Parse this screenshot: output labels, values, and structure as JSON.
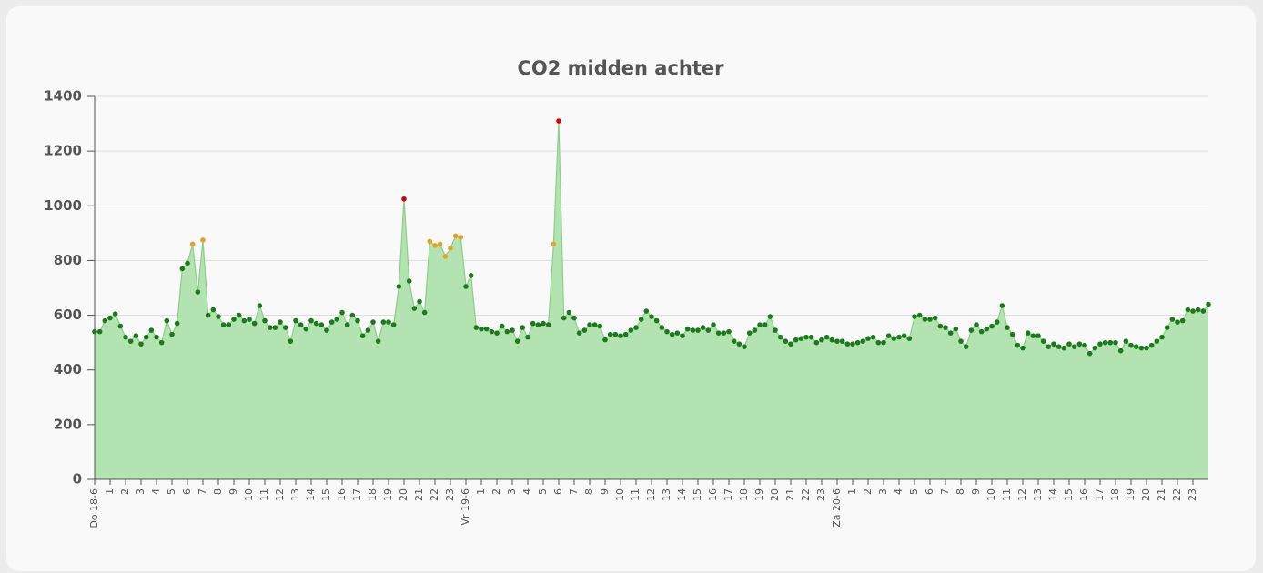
{
  "chart_data": {
    "type": "area",
    "title": "CO2 midden achter",
    "categories": [
      "Do 18-6",
      null,
      null,
      "1",
      null,
      null,
      "2",
      null,
      null,
      "3",
      null,
      null,
      "4",
      null,
      null,
      "5",
      null,
      null,
      "6",
      null,
      null,
      "7",
      null,
      null,
      "8",
      null,
      null,
      "9",
      null,
      null,
      "10",
      null,
      null,
      "11",
      null,
      null,
      "12",
      null,
      null,
      "13",
      null,
      null,
      "14",
      null,
      null,
      "15",
      null,
      null,
      "16",
      null,
      null,
      "17",
      null,
      null,
      "18",
      null,
      null,
      "19",
      null,
      null,
      "20",
      null,
      null,
      "21",
      null,
      null,
      "22",
      null,
      null,
      "23",
      null,
      null,
      "Vr 19-6",
      null,
      null,
      "1",
      null,
      null,
      "2",
      null,
      null,
      "3",
      null,
      null,
      "4",
      null,
      null,
      "5",
      null,
      null,
      "6",
      null,
      null,
      "7",
      null,
      null,
      "8",
      null,
      null,
      "9",
      null,
      null,
      "10",
      null,
      null,
      "11",
      null,
      null,
      "12",
      null,
      null,
      "13",
      null,
      null,
      "14",
      null,
      null,
      "15",
      null,
      null,
      "16",
      null,
      null,
      "17",
      null,
      null,
      "18",
      null,
      null,
      "19",
      null,
      null,
      "20",
      null,
      null,
      "21",
      null,
      null,
      "22",
      null,
      null,
      "23",
      null,
      null,
      "Za 20-6",
      null,
      null,
      "1",
      null,
      null,
      "2",
      null,
      null,
      "3",
      null,
      null,
      "4",
      null,
      null,
      "5",
      null,
      null,
      "6",
      null,
      null,
      "7",
      null,
      null,
      "8",
      null,
      null,
      "9",
      null,
      null,
      "10",
      null,
      null,
      "11",
      null,
      null,
      "12",
      null,
      null,
      "13",
      null,
      null,
      "14",
      null,
      null,
      "15",
      null,
      null,
      "16",
      null,
      null,
      "17",
      null,
      null,
      "18",
      null,
      null,
      "19",
      null,
      null,
      "20",
      null,
      null,
      "21",
      null,
      null,
      "22",
      null,
      null,
      "23",
      null,
      null,
      null
    ],
    "values": [
      540,
      540,
      580,
      590,
      605,
      560,
      520,
      505,
      525,
      495,
      520,
      545,
      520,
      500,
      580,
      530,
      570,
      770,
      790,
      860,
      685,
      875,
      600,
      620,
      595,
      565,
      565,
      585,
      600,
      580,
      585,
      570,
      635,
      580,
      555,
      555,
      575,
      555,
      505,
      580,
      565,
      550,
      580,
      570,
      565,
      545,
      575,
      585,
      610,
      565,
      600,
      580,
      525,
      545,
      575,
      505,
      575,
      575,
      565,
      705,
      1025,
      725,
      625,
      650,
      610,
      870,
      855,
      860,
      815,
      845,
      890,
      885,
      705,
      745,
      555,
      550,
      550,
      540,
      535,
      560,
      540,
      545,
      505,
      555,
      520,
      570,
      565,
      570,
      565,
      860,
      1310,
      590,
      610,
      590,
      535,
      545,
      565,
      565,
      560,
      510,
      530,
      530,
      525,
      530,
      545,
      555,
      585,
      615,
      595,
      580,
      555,
      540,
      530,
      535,
      525,
      550,
      545,
      545,
      555,
      545,
      565,
      535,
      535,
      540,
      505,
      495,
      485,
      535,
      545,
      565,
      565,
      595,
      545,
      520,
      505,
      495,
      510,
      515,
      520,
      520,
      500,
      510,
      520,
      510,
      505,
      505,
      495,
      495,
      500,
      505,
      515,
      520,
      500,
      500,
      525,
      515,
      520,
      525,
      515,
      595,
      600,
      585,
      585,
      590,
      560,
      555,
      535,
      550,
      505,
      485,
      545,
      565,
      540,
      550,
      560,
      575,
      635,
      555,
      530,
      490,
      480,
      535,
      525,
      525,
      505,
      485,
      495,
      485,
      480,
      495,
      485,
      495,
      490,
      460,
      480,
      495,
      500,
      500,
      500,
      470,
      505,
      490,
      485,
      480,
      480,
      490,
      505,
      520,
      555,
      585,
      575,
      580,
      620,
      615,
      620,
      615,
      640
    ],
    "ylim": [
      0,
      1400
    ],
    "yticks": [
      0,
      200,
      400,
      600,
      800,
      1000,
      1200,
      1400
    ],
    "grid": true,
    "color": "#b2e3b0",
    "line_color": "#8ccf8a",
    "marker_color": "#1b7a1b",
    "marker_color_bands": [
      {
        "from": 800,
        "color": "#e8a126"
      },
      {
        "from": 1000,
        "color": "#d40000"
      }
    ]
  }
}
